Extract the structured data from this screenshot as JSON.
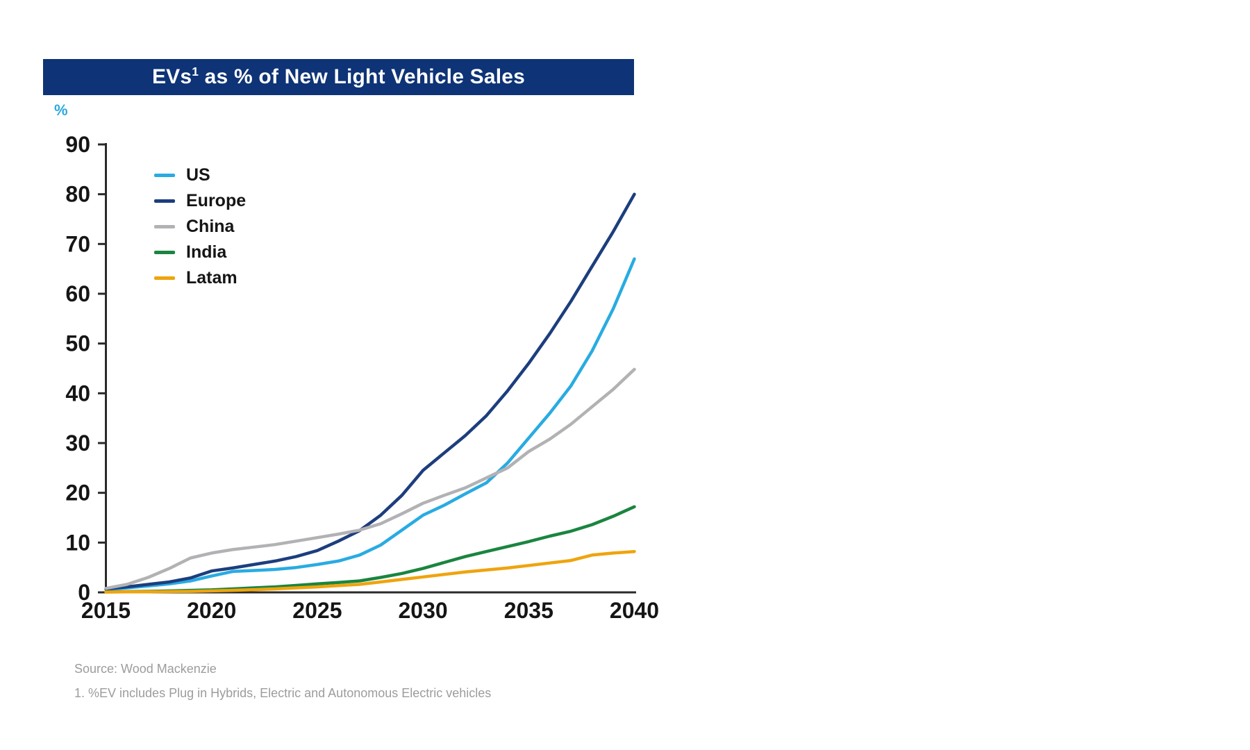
{
  "header": {
    "title_prefix": "EVs",
    "title_sup": "1",
    "title_rest": " as % of New Light Vehicle Sales",
    "bar_color": "#0e3376",
    "text_color": "#ffffff"
  },
  "footer": {
    "source": "Source: Wood Mackenzie",
    "footnote": "1. %EV includes Plug in Hybrids, Electric and Autonomous Electric vehicles"
  },
  "colors": {
    "axis": "#2a2a2a",
    "tick_text": "#151515",
    "muted_text": "#9c9c9c",
    "unit_accent": "#2aa9e0"
  },
  "chart_data": {
    "type": "line",
    "title": "EVs1 as % of New Light Vehicle Sales",
    "xlabel": "",
    "ylabel": "%",
    "xlim": [
      2015,
      2040
    ],
    "ylim": [
      0,
      90
    ],
    "grid": false,
    "legend_position": "top-left",
    "xticks": [
      2015,
      2020,
      2025,
      2030,
      2035,
      2040
    ],
    "yticks": [
      0,
      10,
      20,
      30,
      40,
      50,
      60,
      70,
      80,
      90
    ],
    "x": [
      2015,
      2016,
      2017,
      2018,
      2019,
      2020,
      2021,
      2022,
      2023,
      2024,
      2025,
      2026,
      2027,
      2028,
      2029,
      2030,
      2031,
      2032,
      2033,
      2034,
      2035,
      2036,
      2037,
      2038,
      2039,
      2040
    ],
    "series": [
      {
        "name": "US",
        "color": "#29abe2",
        "values": [
          0.6,
          0.9,
          1.3,
          1.7,
          2.3,
          3.3,
          4.2,
          4.4,
          4.6,
          5.0,
          5.6,
          6.3,
          7.5,
          9.5,
          12.5,
          15.5,
          17.5,
          19.8,
          22.0,
          26.0,
          31.0,
          36.0,
          41.5,
          48.5,
          57.0,
          67.0
        ]
      },
      {
        "name": "Europe",
        "color": "#1c3e7e",
        "values": [
          0.7,
          1.1,
          1.6,
          2.1,
          2.9,
          4.3,
          4.9,
          5.6,
          6.3,
          7.2,
          8.4,
          10.3,
          12.4,
          15.5,
          19.5,
          24.5,
          28.0,
          31.5,
          35.5,
          40.5,
          46.0,
          52.0,
          58.5,
          65.5,
          72.5,
          80.0
        ]
      },
      {
        "name": "China",
        "color": "#b2b2b5",
        "values": [
          0.8,
          1.6,
          3.0,
          4.8,
          6.9,
          7.9,
          8.6,
          9.1,
          9.6,
          10.3,
          11.0,
          11.7,
          12.5,
          13.8,
          15.8,
          17.9,
          19.5,
          21.0,
          23.0,
          25.0,
          28.3,
          30.8,
          33.8,
          37.3,
          40.8,
          44.8
        ]
      },
      {
        "name": "India",
        "color": "#1a8540",
        "values": [
          0.1,
          0.15,
          0.2,
          0.3,
          0.4,
          0.5,
          0.7,
          0.9,
          1.1,
          1.4,
          1.7,
          2.0,
          2.3,
          3.0,
          3.8,
          4.8,
          6.0,
          7.2,
          8.2,
          9.2,
          10.2,
          11.3,
          12.3,
          13.6,
          15.3,
          17.2
        ]
      },
      {
        "name": "Latam",
        "color": "#efa40e",
        "values": [
          0.05,
          0.1,
          0.1,
          0.15,
          0.2,
          0.3,
          0.4,
          0.55,
          0.7,
          0.9,
          1.1,
          1.35,
          1.6,
          2.1,
          2.6,
          3.1,
          3.6,
          4.1,
          4.5,
          4.9,
          5.4,
          5.9,
          6.4,
          7.5,
          7.9,
          8.2
        ]
      }
    ]
  }
}
